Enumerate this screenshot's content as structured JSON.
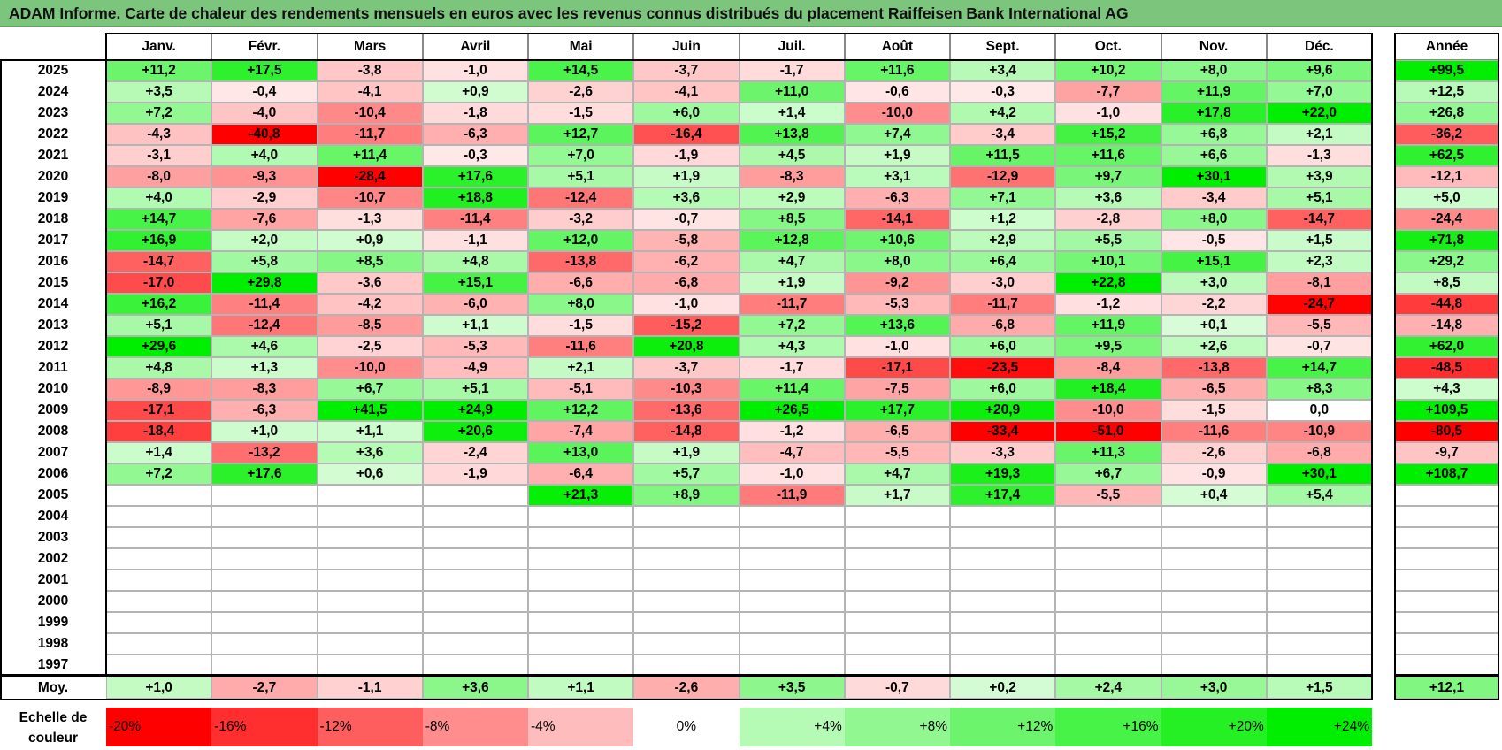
{
  "title": "ADAM Informe. Carte de chaleur des rendements mensuels en euros avec les revenus connus distribués du placement Raiffeisen Bank International AG",
  "chart_data": {
    "type": "heatmap",
    "title": "ADAM Informe. Carte de chaleur des rendements mensuels en euros avec les revenus connus distribués du placement Raiffeisen Bank International AG",
    "columns": [
      "Janv.",
      "Févr.",
      "Mars",
      "Avril",
      "Mai",
      "Juin",
      "Juil.",
      "Août",
      "Sept.",
      "Oct.",
      "Nov.",
      "Déc."
    ],
    "year_header": "Année",
    "avg_label": "Moy.",
    "rows": [
      {
        "year": "2025",
        "values": [
          "+11,2",
          "+17,5",
          "-3,8",
          "-1,0",
          "+14,5",
          "-3,7",
          "-1,7",
          "+11,6",
          "+3,4",
          "+10,2",
          "+8,0",
          "+9,6"
        ],
        "annual": "+99,5"
      },
      {
        "year": "2024",
        "values": [
          "+3,5",
          "-0,4",
          "-4,1",
          "+0,9",
          "-2,6",
          "-4,1",
          "+11,0",
          "-0,6",
          "-0,3",
          "-7,7",
          "+11,9",
          "+7,0"
        ],
        "annual": "+12,5"
      },
      {
        "year": "2023",
        "values": [
          "+7,2",
          "-4,0",
          "-10,4",
          "-1,8",
          "-1,5",
          "+6,0",
          "+1,4",
          "-10,0",
          "+4,2",
          "-1,0",
          "+17,8",
          "+22,0"
        ],
        "annual": "+26,8"
      },
      {
        "year": "2022",
        "values": [
          "-4,3",
          "-40,8",
          "-11,7",
          "-6,3",
          "+12,7",
          "-16,4",
          "+13,8",
          "+7,4",
          "-3,4",
          "+15,2",
          "+6,8",
          "+2,1"
        ],
        "annual": "-36,2"
      },
      {
        "year": "2021",
        "values": [
          "-3,1",
          "+4,0",
          "+11,4",
          "-0,3",
          "+7,0",
          "-1,9",
          "+4,5",
          "+1,9",
          "+11,5",
          "+11,6",
          "+6,6",
          "-1,3"
        ],
        "annual": "+62,5"
      },
      {
        "year": "2020",
        "values": [
          "-8,0",
          "-9,3",
          "-28,4",
          "+17,6",
          "+5,1",
          "+1,9",
          "-8,3",
          "+3,1",
          "-12,9",
          "+9,7",
          "+30,1",
          "+3,9"
        ],
        "annual": "-12,1"
      },
      {
        "year": "2019",
        "values": [
          "+4,0",
          "-2,9",
          "-10,7",
          "+18,8",
          "-12,4",
          "+3,6",
          "+2,9",
          "-6,3",
          "+7,1",
          "+3,6",
          "-3,4",
          "+5,1"
        ],
        "annual": "+5,0"
      },
      {
        "year": "2018",
        "values": [
          "+14,7",
          "-7,6",
          "-1,3",
          "-11,4",
          "-3,2",
          "-0,7",
          "+8,5",
          "-14,1",
          "+1,2",
          "-2,8",
          "+8,0",
          "-14,7"
        ],
        "annual": "-24,4"
      },
      {
        "year": "2017",
        "values": [
          "+16,9",
          "+2,0",
          "+0,9",
          "-1,1",
          "+12,0",
          "-5,8",
          "+12,8",
          "+10,6",
          "+2,9",
          "+5,5",
          "-0,5",
          "+1,5"
        ],
        "annual": "+71,8"
      },
      {
        "year": "2016",
        "values": [
          "-14,7",
          "+5,8",
          "+8,5",
          "+4,8",
          "-13,8",
          "-6,2",
          "+4,7",
          "+8,0",
          "+6,4",
          "+10,1",
          "+15,1",
          "+2,3"
        ],
        "annual": "+29,2"
      },
      {
        "year": "2015",
        "values": [
          "-17,0",
          "+29,8",
          "-3,6",
          "+15,1",
          "-6,6",
          "-6,8",
          "+1,9",
          "-9,2",
          "-3,0",
          "+22,8",
          "+3,0",
          "-8,1"
        ],
        "annual": "+8,5"
      },
      {
        "year": "2014",
        "values": [
          "+16,2",
          "-11,4",
          "-4,2",
          "-6,0",
          "+8,0",
          "-1,0",
          "-11,7",
          "-5,3",
          "-11,7",
          "-1,2",
          "-2,2",
          "-24,7"
        ],
        "annual": "-44,8"
      },
      {
        "year": "2013",
        "values": [
          "+5,1",
          "-12,4",
          "-8,5",
          "+1,1",
          "-1,5",
          "-15,2",
          "+7,2",
          "+13,6",
          "-6,8",
          "+11,9",
          "+0,1",
          "-5,5"
        ],
        "annual": "-14,8"
      },
      {
        "year": "2012",
        "values": [
          "+29,6",
          "+4,6",
          "-2,5",
          "-5,3",
          "-11,6",
          "+20,8",
          "+4,3",
          "-1,0",
          "+6,0",
          "+9,5",
          "+2,6",
          "-0,7"
        ],
        "annual": "+62,0"
      },
      {
        "year": "2011",
        "values": [
          "+4,8",
          "+1,3",
          "-10,0",
          "-4,9",
          "+2,1",
          "-3,7",
          "-1,7",
          "-17,1",
          "-23,5",
          "-8,4",
          "-13,8",
          "+14,7"
        ],
        "annual": "-48,5"
      },
      {
        "year": "2010",
        "values": [
          "-8,9",
          "-8,3",
          "+6,7",
          "+5,1",
          "-5,1",
          "-10,3",
          "+11,4",
          "-7,5",
          "+6,0",
          "+18,4",
          "-6,5",
          "+8,3"
        ],
        "annual": "+4,3"
      },
      {
        "year": "2009",
        "values": [
          "-17,1",
          "-6,3",
          "+41,5",
          "+24,9",
          "+12,2",
          "-13,6",
          "+26,5",
          "+17,7",
          "+20,9",
          "-10,0",
          "-1,5",
          "0,0"
        ],
        "annual": "+109,5"
      },
      {
        "year": "2008",
        "values": [
          "-18,4",
          "+1,0",
          "+1,1",
          "+20,6",
          "-7,4",
          "-14,8",
          "-1,2",
          "-6,5",
          "-33,4",
          "-51,0",
          "-11,6",
          "-10,9"
        ],
        "annual": "-80,5"
      },
      {
        "year": "2007",
        "values": [
          "+1,4",
          "-13,2",
          "+3,6",
          "-2,4",
          "+13,0",
          "+1,9",
          "-4,7",
          "-5,5",
          "-3,3",
          "+11,3",
          "-2,6",
          "-6,8"
        ],
        "annual": "-9,7"
      },
      {
        "year": "2006",
        "values": [
          "+7,2",
          "+17,6",
          "+0,6",
          "-1,9",
          "-6,4",
          "+5,7",
          "-1,0",
          "+4,7",
          "+19,3",
          "+6,7",
          "-0,9",
          "+30,1"
        ],
        "annual": "+108,7"
      },
      {
        "year": "2005",
        "values": [
          "",
          "",
          "",
          "",
          "+21,3",
          "+8,9",
          "-11,9",
          "+1,7",
          "+17,4",
          "-5,5",
          "+0,4",
          "+5,4"
        ],
        "annual": ""
      },
      {
        "year": "2004",
        "values": [
          "",
          "",
          "",
          "",
          "",
          "",
          "",
          "",
          "",
          "",
          "",
          ""
        ],
        "annual": ""
      },
      {
        "year": "2003",
        "values": [
          "",
          "",
          "",
          "",
          "",
          "",
          "",
          "",
          "",
          "",
          "",
          ""
        ],
        "annual": ""
      },
      {
        "year": "2002",
        "values": [
          "",
          "",
          "",
          "",
          "",
          "",
          "",
          "",
          "",
          "",
          "",
          ""
        ],
        "annual": ""
      },
      {
        "year": "2001",
        "values": [
          "",
          "",
          "",
          "",
          "",
          "",
          "",
          "",
          "",
          "",
          "",
          ""
        ],
        "annual": ""
      },
      {
        "year": "2000",
        "values": [
          "",
          "",
          "",
          "",
          "",
          "",
          "",
          "",
          "",
          "",
          "",
          ""
        ],
        "annual": ""
      },
      {
        "year": "1999",
        "values": [
          "",
          "",
          "",
          "",
          "",
          "",
          "",
          "",
          "",
          "",
          "",
          ""
        ],
        "annual": ""
      },
      {
        "year": "1998",
        "values": [
          "",
          "",
          "",
          "",
          "",
          "",
          "",
          "",
          "",
          "",
          "",
          ""
        ],
        "annual": ""
      },
      {
        "year": "1997",
        "values": [
          "",
          "",
          "",
          "",
          "",
          "",
          "",
          "",
          "",
          "",
          "",
          ""
        ],
        "annual": ""
      }
    ],
    "averages": [
      "+1,0",
      "-2,7",
      "-1,1",
      "+3,6",
      "+1,1",
      "-2,6",
      "+3,5",
      "-0,7",
      "+0,2",
      "+2,4",
      "+3,0",
      "+1,5"
    ],
    "average_annual": "+12,1",
    "color_scale": {
      "label": "Echelle de couleur",
      "steps": [
        "-20%",
        "-16%",
        "-12%",
        "-8%",
        "-4%",
        "0%",
        "+4%",
        "+8%",
        "+12%",
        "+16%",
        "+20%",
        "+24%"
      ],
      "negative_color": "#ff0000",
      "positive_color": "#00ee00",
      "neutral_color": "#ffffff"
    }
  }
}
